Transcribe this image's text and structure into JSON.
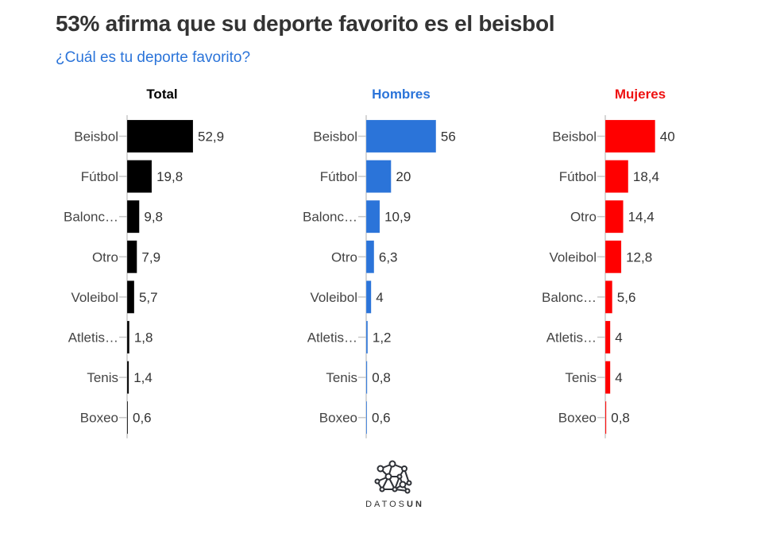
{
  "header": {
    "title": "53% afirma que su deporte favorito es el beisbol",
    "subtitle": "¿Cuál es tu deporte favorito?"
  },
  "logo": {
    "icon": "network-brain-icon",
    "text_light": "DATOS",
    "text_bold": "UN"
  },
  "chart_data": [
    {
      "type": "bar",
      "orientation": "horizontal",
      "title": "Total",
      "color": "#000000",
      "title_color": "#000000",
      "categories": [
        "Beisbol",
        "Fútbol",
        "Balonc…",
        "Otro",
        "Voleibol",
        "Atletis…",
        "Tenis",
        "Boxeo"
      ],
      "values": [
        52.9,
        19.8,
        9.8,
        7.9,
        5.7,
        1.8,
        1.4,
        0.6
      ],
      "value_labels": [
        "52,9",
        "19,8",
        "9,8",
        "7,9",
        "5,7",
        "1,8",
        "1,4",
        "0,6"
      ],
      "xlim": [
        0,
        60
      ]
    },
    {
      "type": "bar",
      "orientation": "horizontal",
      "title": "Hombres",
      "color": "#2b74d9",
      "title_color": "#2b74d9",
      "categories": [
        "Beisbol",
        "Fútbol",
        "Balonc…",
        "Otro",
        "Voleibol",
        "Atletis…",
        "Tenis",
        "Boxeo"
      ],
      "values": [
        56,
        20,
        10.9,
        6.3,
        4,
        1.2,
        0.8,
        0.6
      ],
      "value_labels": [
        "56",
        "20",
        "10,9",
        "6,3",
        "4",
        "1,2",
        "0,8",
        "0,6"
      ],
      "xlim": [
        0,
        60
      ]
    },
    {
      "type": "bar",
      "orientation": "horizontal",
      "title": "Mujeres",
      "color": "#ff0000",
      "title_color": "#ee1111",
      "categories": [
        "Beisbol",
        "Fútbol",
        "Otro",
        "Voleibol",
        "Balonc…",
        "Atletis…",
        "Tenis",
        "Boxeo"
      ],
      "values": [
        40,
        18.4,
        14.4,
        12.8,
        5.6,
        4,
        4,
        0.8
      ],
      "value_labels": [
        "40",
        "18,4",
        "14,4",
        "12,8",
        "5,6",
        "4",
        "4",
        "0,8"
      ],
      "xlim": [
        0,
        60
      ]
    }
  ]
}
